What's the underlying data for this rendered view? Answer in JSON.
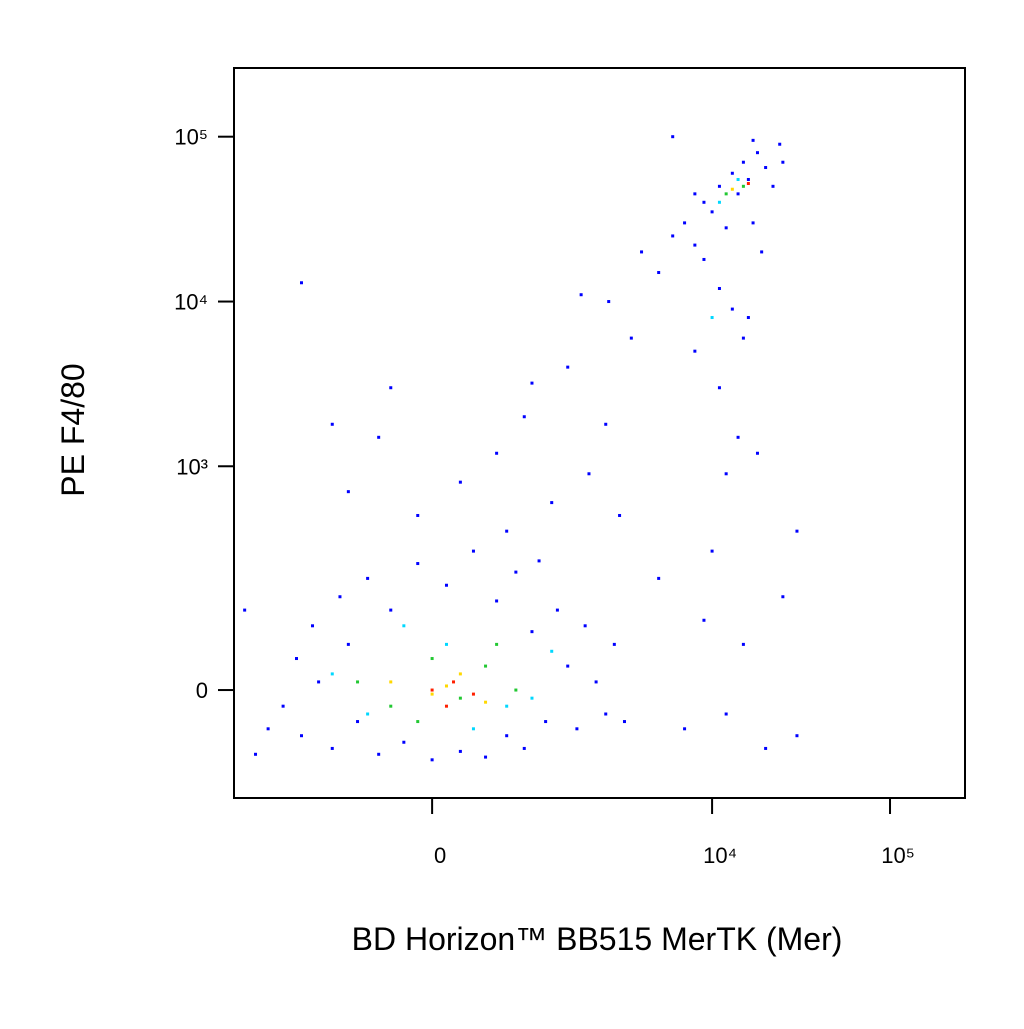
{
  "chart_data": {
    "type": "scatter",
    "x_label": "BD Horizon™ BB515 MerTK (Mer)",
    "y_label": "PE F4/80",
    "xscale": "biexponential",
    "yscale": "biexponential",
    "xlim": [
      -3450,
      263800
    ],
    "ylim": [
      -189,
      261000
    ],
    "xticks": [
      0,
      {
        "value": 10000,
        "label": "10⁴"
      },
      {
        "value": 100000,
        "label": "10⁵"
      }
    ],
    "yticks": [
      0,
      {
        "value": 1000,
        "label": "10³"
      },
      {
        "value": 10000,
        "label": "10⁴"
      },
      {
        "value": 100000,
        "label": "10⁵"
      }
    ],
    "series": [
      {
        "color": "#0000ff",
        "x": [
          -1800,
          -1500,
          -1400,
          -1200,
          -1100,
          -900,
          -800,
          -700,
          -600,
          -500,
          -400,
          -300,
          -200,
          -100,
          0,
          100,
          200,
          300,
          400,
          500,
          600,
          700,
          800,
          900,
          1000,
          1100,
          1300,
          1500,
          1700,
          1900,
          2200,
          2500,
          2800,
          3200,
          -2200,
          -3000,
          -2600,
          -700,
          -400,
          -300,
          200,
          500,
          800,
          1200,
          1500,
          2000,
          2500,
          3000,
          3500,
          600,
          -100,
          900,
          1800,
          2600,
          -1400,
          -900,
          5000,
          7000,
          9000,
          12000,
          15000,
          20000,
          25000,
          30000,
          10000,
          14000,
          11000,
          8000,
          12000,
          16000,
          18000,
          30000,
          4000,
          5000,
          6000,
          7000,
          8000,
          9000,
          10000,
          11000,
          12000,
          13000,
          14000,
          15000,
          16000,
          18000,
          20000,
          22000,
          25000,
          9000,
          11000,
          13000,
          15000,
          17000,
          19000,
          6000,
          8000,
          24000,
          17000
        ],
        "values": [
          -20,
          40,
          -60,
          90,
          10,
          -80,
          150,
          60,
          -40,
          200,
          -90,
          120,
          -70,
          250,
          -100,
          180,
          -85,
          300,
          -95,
          140,
          -60,
          220,
          -80,
          80,
          260,
          -40,
          120,
          30,
          -50,
          90,
          10,
          -30,
          60,
          -40,
          -50,
          120,
          -90,
          700,
          1500,
          3000,
          800,
          1200,
          2000,
          600,
          4000,
          900,
          1800,
          500,
          6000,
          400,
          500,
          3200,
          11000,
          10000,
          13000,
          1800,
          200,
          -50,
          100,
          -30,
          60,
          -80,
          150,
          -60,
          300,
          1500,
          3000,
          5000,
          900,
          8000,
          1200,
          400,
          20000,
          15000,
          25000,
          30000,
          22000,
          40000,
          35000,
          50000,
          28000,
          60000,
          45000,
          70000,
          55000,
          80000,
          65000,
          50000,
          70000,
          18000,
          12000,
          9000,
          6000,
          30000,
          20000,
          100000,
          45000,
          90000,
          95000
        ]
      },
      {
        "color": "#00d8ff",
        "x": [
          -900,
          -500,
          100,
          600,
          1200,
          -200,
          300,
          900,
          11000,
          14000,
          10000
        ],
        "values": [
          20,
          -30,
          60,
          -20,
          50,
          90,
          -50,
          -10,
          40000,
          55000,
          8000
        ]
      },
      {
        "color": "#22c832",
        "x": [
          -600,
          -300,
          0,
          200,
          400,
          700,
          -100,
          500,
          15000,
          12000
        ],
        "values": [
          10,
          -20,
          40,
          -10,
          30,
          0,
          -40,
          60,
          50000,
          45000
        ]
      },
      {
        "color": "#ffd800",
        "x": [
          -300,
          0,
          200,
          400,
          100,
          13000
        ],
        "values": [
          10,
          -5,
          20,
          -15,
          5,
          48000
        ]
      },
      {
        "color": "#ff2000",
        "x": [
          0,
          150,
          300,
          100,
          16000
        ],
        "values": [
          0,
          10,
          -5,
          -20,
          52000
        ]
      }
    ]
  }
}
